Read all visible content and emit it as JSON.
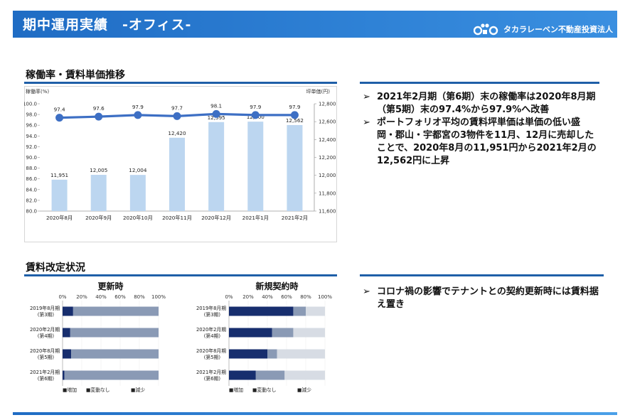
{
  "header": {
    "title": "期中運用実績　-オフィス-",
    "company": "タカラレーベン不動産投資法人"
  },
  "section1": {
    "title": "稼働率・賃料単価推移",
    "bullets": [
      "2021年2月期（第6期）末の稼働率は2020年8月期（第5期）末の97.4%から97.9%へ改善",
      "ポートフォリオ平均の賃料坪単価は単価の低い盛岡・郡山・宇都宮の3物件を11月、12月に売却したことで、2020年8月の11,951円から2021年2月の12,562円に上昇"
    ]
  },
  "section2": {
    "title": "賃料改定状況",
    "bullets": [
      "コロナ禍の影響でテナントとの契約更新時には賃料据え置き"
    ]
  },
  "bullet_marker": "➢",
  "colors": {
    "bar": "#bcd6f0",
    "line": "#3d6fc4",
    "increase": "#172e6e",
    "unchanged": "#8a9ab5",
    "decrease": "#d7dce4"
  },
  "chart_data": [
    {
      "type": "bar+line",
      "categories": [
        "2020年8月",
        "2020年9月",
        "2020年10月",
        "2020年11月",
        "2020年12月",
        "2021年1月",
        "2021年2月"
      ],
      "y1_label": "稼働率(%)",
      "y2_label": "坪単価(円)",
      "y1_range": [
        80.0,
        100.0
      ],
      "y1_ticks": [
        "80.0",
        "82.0",
        "84.0",
        "86.0",
        "88.0",
        "90.0",
        "92.0",
        "94.0",
        "96.0",
        "98.0",
        "100.0"
      ],
      "y2_range": [
        11600,
        12800
      ],
      "y2_ticks": [
        "11,600",
        "11,800",
        "12,000",
        "12,200",
        "12,400",
        "12,600",
        "12,800"
      ],
      "series": [
        {
          "name": "賃料坪単価",
          "type": "bar",
          "axis": "right",
          "values": [
            11951,
            12005,
            12004,
            12420,
            12595,
            12600,
            12562
          ],
          "labels": [
            "11,951",
            "12,005",
            "12,004",
            "12,420",
            "12,595",
            "12,600",
            "12,562"
          ]
        },
        {
          "name": "稼働率",
          "type": "line",
          "axis": "left",
          "values": [
            97.4,
            97.6,
            97.9,
            97.7,
            98.1,
            97.9,
            97.9
          ],
          "labels": [
            "97.4",
            "97.6",
            "97.9",
            "97.7",
            "98.1",
            "97.9",
            "97.9"
          ]
        }
      ]
    },
    {
      "type": "stacked-bar-horizontal",
      "title": "更新時",
      "x_ticks": [
        "0%",
        "20%",
        "40%",
        "60%",
        "80%",
        "100%"
      ],
      "categories": [
        [
          "2019年8月期",
          "(第3期)"
        ],
        [
          "2020年2月期",
          "(第4期)"
        ],
        [
          "2020年8月期",
          "(第5期)"
        ],
        [
          "2021年2月期",
          "(第6期)"
        ]
      ],
      "series": [
        {
          "name": "増加",
          "values": [
            11,
            8,
            9,
            2
          ]
        },
        {
          "name": "変動なし",
          "values": [
            89,
            92,
            91,
            98
          ]
        },
        {
          "name": "減少",
          "values": [
            0,
            0,
            0,
            0
          ]
        }
      ],
      "legend": [
        "■増加",
        "■変動なし",
        "■減少"
      ]
    },
    {
      "type": "stacked-bar-horizontal",
      "title": "新規契約時",
      "x_ticks": [
        "0%",
        "20%",
        "40%",
        "60%",
        "80%",
        "100%"
      ],
      "categories": [
        [
          "2019年8月期",
          "(第3期)"
        ],
        [
          "2020年2月期",
          "(第4期)"
        ],
        [
          "2020年8月期",
          "(第5期)"
        ],
        [
          "2021年2月期",
          "(第6期)"
        ]
      ],
      "series": [
        {
          "name": "増加",
          "values": [
            67,
            45,
            40,
            28
          ]
        },
        {
          "name": "変動なし",
          "values": [
            13,
            22,
            10,
            30
          ]
        },
        {
          "name": "減少",
          "values": [
            20,
            33,
            50,
            42
          ]
        }
      ],
      "legend": [
        "■増加",
        "■変動なし",
        "■減少"
      ]
    }
  ]
}
